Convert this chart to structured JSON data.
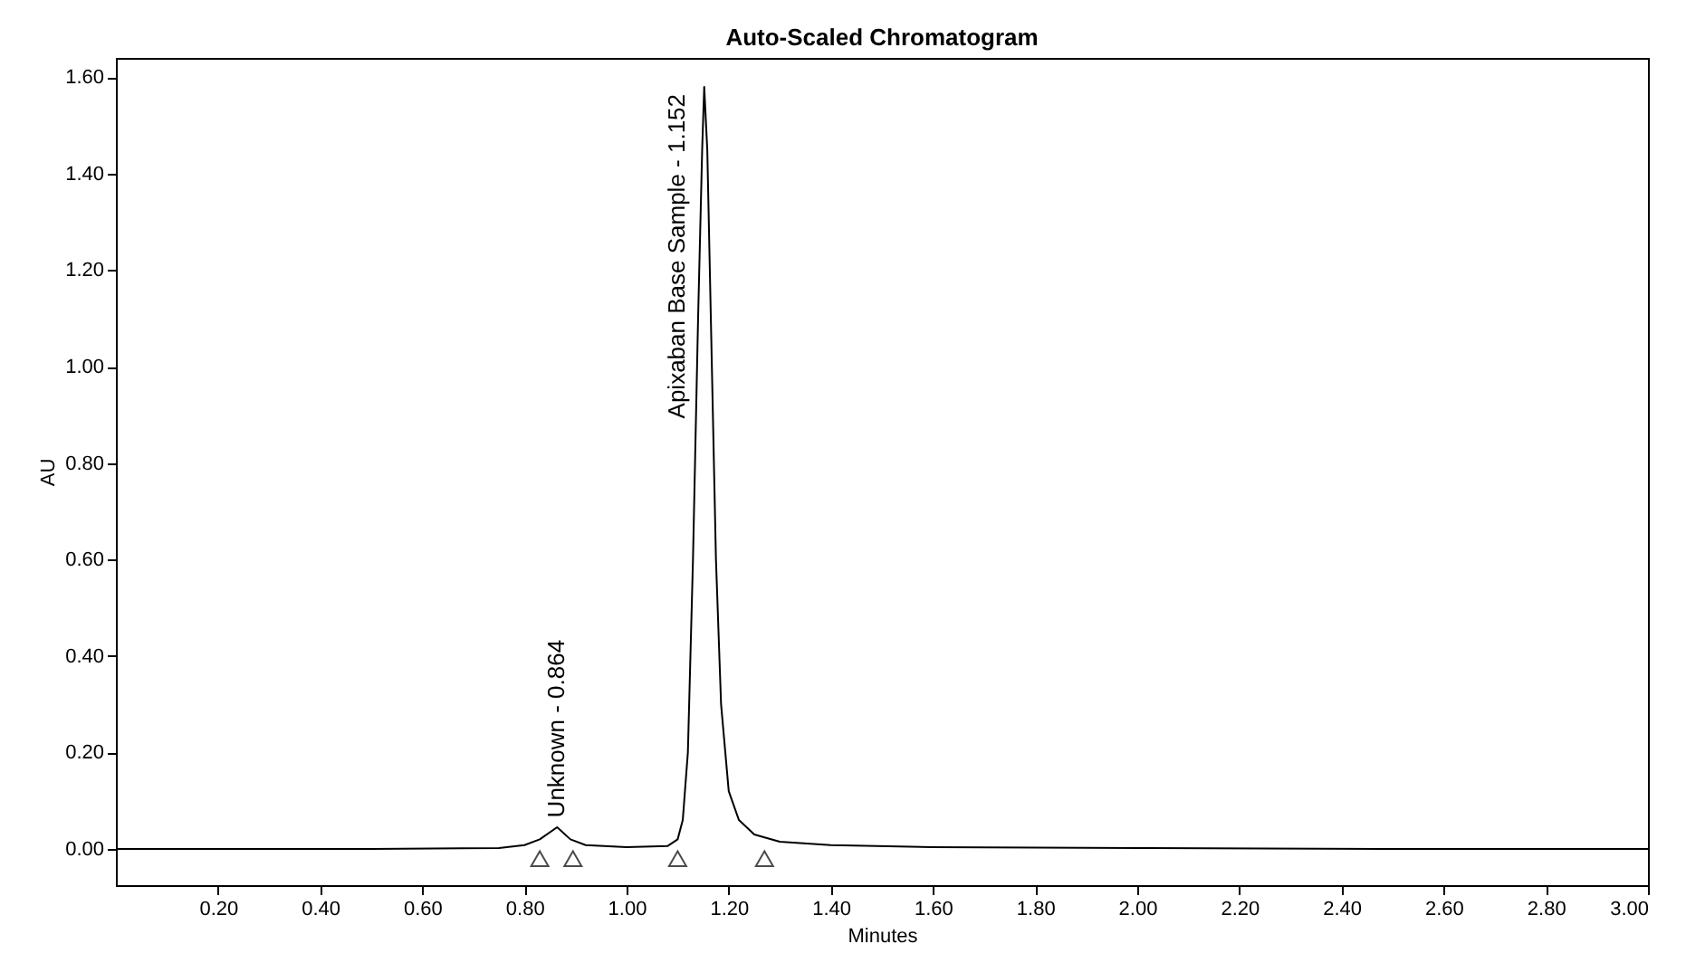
{
  "chart_data": {
    "type": "line",
    "title": "Auto-Scaled Chromatogram",
    "xlabel": "Minutes",
    "ylabel": "AU",
    "xlim": [
      0.0,
      3.0
    ],
    "xticks": [
      {
        "value": 0.2,
        "label": "0.20"
      },
      {
        "value": 0.4,
        "label": "0.40"
      },
      {
        "value": 0.6,
        "label": "0.60"
      },
      {
        "value": 0.8,
        "label": "0.80"
      },
      {
        "value": 1.0,
        "label": "1.00"
      },
      {
        "value": 1.2,
        "label": "1.20"
      },
      {
        "value": 1.4,
        "label": "1.40"
      },
      {
        "value": 1.6,
        "label": "1.60"
      },
      {
        "value": 1.8,
        "label": "1.80"
      },
      {
        "value": 2.0,
        "label": "2.00"
      },
      {
        "value": 2.2,
        "label": "2.20"
      },
      {
        "value": 2.4,
        "label": "2.40"
      },
      {
        "value": 2.6,
        "label": "2.60"
      },
      {
        "value": 2.8,
        "label": "2.80"
      },
      {
        "value": 3.0,
        "label": "3.00"
      }
    ],
    "ylim": [
      -0.075,
      1.64
    ],
    "yticks": [
      {
        "value": 0,
        "label": "0.00"
      },
      {
        "value": 0.2,
        "label": "0.20"
      },
      {
        "value": 0.4,
        "label": "0.40"
      },
      {
        "value": 0.6,
        "label": "0.60"
      },
      {
        "value": 0.8,
        "label": "0.80"
      },
      {
        "value": 1.0,
        "label": "1.00"
      },
      {
        "value": 1.2,
        "label": "1.20"
      },
      {
        "value": 1.4,
        "label": "1.40"
      },
      {
        "value": 1.6,
        "label": "1.60"
      }
    ],
    "grid": false,
    "legend": false,
    "series": [
      {
        "color": "#000000",
        "marker": "none",
        "line_style": "solid",
        "x": [
          0.0,
          0.5,
          0.75,
          0.8,
          0.83,
          0.864,
          0.89,
          0.92,
          1.0,
          1.08,
          1.1,
          1.11,
          1.12,
          1.13,
          1.14,
          1.148,
          1.152,
          1.158,
          1.165,
          1.175,
          1.185,
          1.2,
          1.22,
          1.25,
          1.3,
          1.4,
          1.6,
          2.0,
          2.5,
          3.0
        ],
        "values": [
          0.0,
          0.0,
          0.002,
          0.008,
          0.02,
          0.045,
          0.02,
          0.008,
          0.004,
          0.006,
          0.02,
          0.06,
          0.2,
          0.6,
          1.1,
          1.45,
          1.58,
          1.45,
          1.1,
          0.6,
          0.3,
          0.12,
          0.06,
          0.03,
          0.015,
          0.008,
          0.004,
          0.002,
          0.0,
          0.0
        ]
      },
      {
        "type": "scatter",
        "color": "#000000",
        "marker": "triangle",
        "x": [
          0.83,
          0.895,
          1.1,
          1.27
        ],
        "values": [
          -0.02,
          -0.02,
          -0.02,
          -0.02
        ]
      }
    ],
    "annotations": [
      {
        "text": "Unknown - 0.864",
        "x": 0.864,
        "y": 0.05
      },
      {
        "text": "Apixaban Base Sample - 1.152",
        "x": 1.152,
        "y": 1.58
      }
    ]
  }
}
